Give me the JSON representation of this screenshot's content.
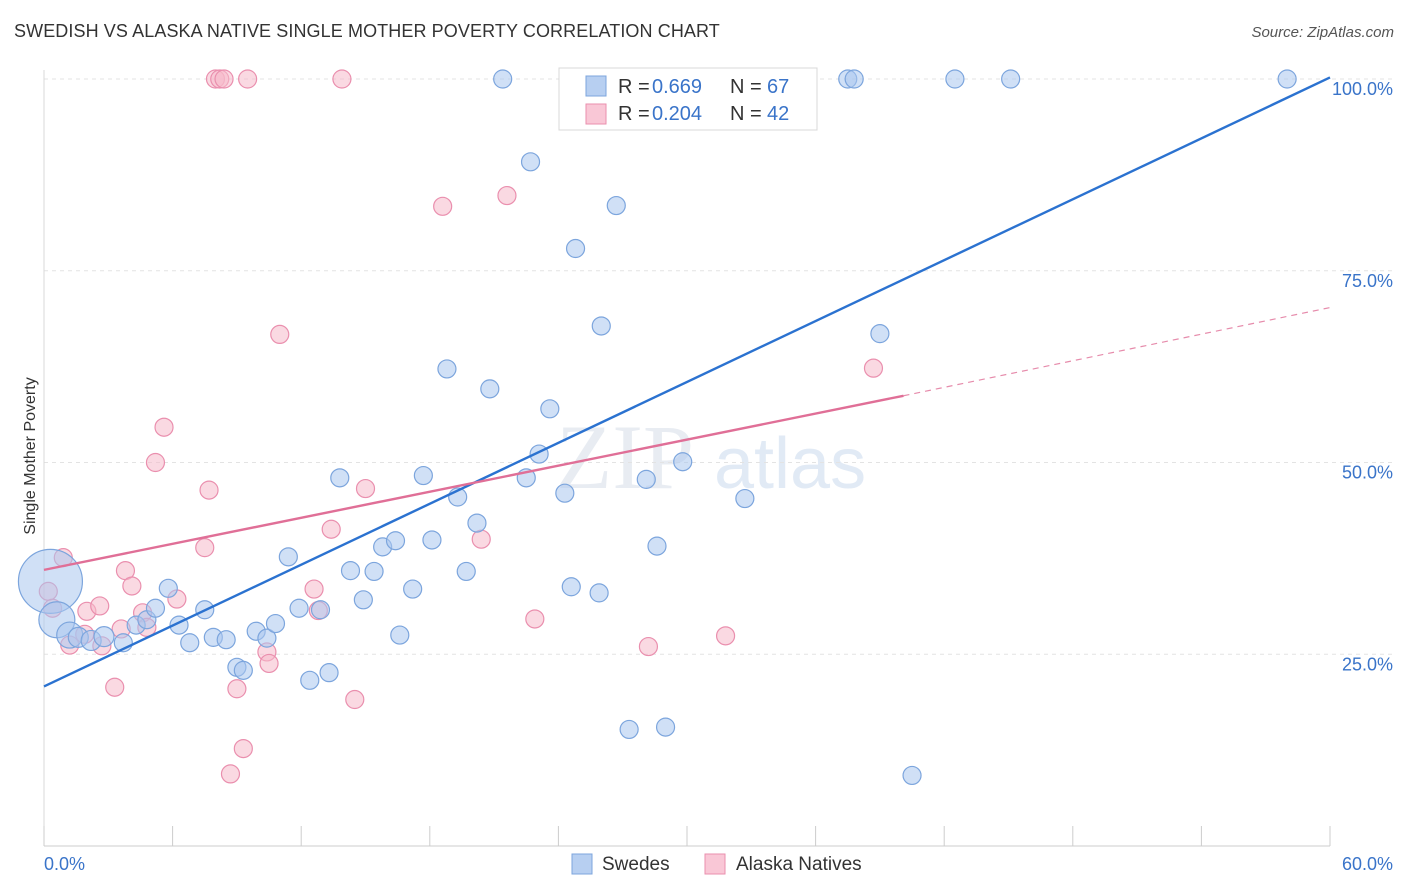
{
  "header": {
    "title": "SWEDISH VS ALASKA NATIVE SINGLE MOTHER POVERTY CORRELATION CHART",
    "source": "Source: ZipAtlas.com"
  },
  "watermark": {
    "zip": "ZIP",
    "atlas": "atlas"
  },
  "colors": {
    "blue_fill": "#a9c6ee",
    "blue_stroke": "#7ca5dd",
    "blue_line": "#2b72d0",
    "pink_fill": "#f5b9cb",
    "pink_stroke": "#ea8fae",
    "pink_line": "#e06f97",
    "axis_text": "#3a74c9",
    "grid": "#e3e3e3"
  },
  "legend": {
    "rows": [
      {
        "r_label": "R =",
        "r_value": "0.669",
        "n_label": "N =",
        "n_value": "67"
      },
      {
        "r_label": "R =",
        "r_value": "0.204",
        "n_label": "N =",
        "n_value": "42"
      }
    ]
  },
  "chart_data": {
    "type": "scatter",
    "title": "SWEDISH VS ALASKA NATIVE SINGLE MOTHER POVERTY CORRELATION CHART",
    "xlabel": "",
    "ylabel": "Single Mother Poverty",
    "xlim": [
      0,
      60
    ],
    "ylim": [
      0,
      100
    ],
    "x_tick_labels": [
      "0.0%",
      "60.0%"
    ],
    "y_tick_labels": [
      "25.0%",
      "50.0%",
      "75.0%",
      "100.0%"
    ],
    "y_ticks": [
      25,
      50,
      75,
      100
    ],
    "grid": true,
    "legend_position": "top-center",
    "series": [
      {
        "name": "Swedes",
        "r": 0.669,
        "n": 67,
        "trend": {
          "x": [
            0,
            60
          ],
          "y": [
            20.8,
            100.2
          ]
        },
        "points": [
          [
            0.3,
            34.5,
            32
          ],
          [
            0.6,
            29.5,
            18
          ],
          [
            1.2,
            27.5,
            13
          ],
          [
            1.6,
            27.2,
            10
          ],
          [
            2.2,
            26.8,
            10
          ],
          [
            2.8,
            27.3,
            10
          ],
          [
            3.7,
            26.5,
            9
          ],
          [
            4.3,
            28.8,
            9
          ],
          [
            4.8,
            29.5,
            9
          ],
          [
            5.2,
            31.0,
            9
          ],
          [
            5.8,
            33.6,
            9
          ],
          [
            6.3,
            28.8,
            9
          ],
          [
            6.8,
            26.5,
            9
          ],
          [
            7.5,
            30.8,
            9
          ],
          [
            7.9,
            27.2,
            9
          ],
          [
            8.5,
            26.9,
            9
          ],
          [
            9.0,
            23.3,
            9
          ],
          [
            9.3,
            22.9,
            9
          ],
          [
            9.9,
            28.0,
            9
          ],
          [
            10.4,
            27.1,
            9
          ],
          [
            10.8,
            29.0,
            9
          ],
          [
            11.4,
            37.7,
            9
          ],
          [
            11.9,
            31.0,
            9
          ],
          [
            12.4,
            21.6,
            9
          ],
          [
            12.9,
            30.8,
            9
          ],
          [
            13.3,
            22.6,
            9
          ],
          [
            13.8,
            48.0,
            9
          ],
          [
            14.3,
            35.9,
            9
          ],
          [
            14.9,
            32.1,
            9
          ],
          [
            15.4,
            35.8,
            9
          ],
          [
            15.8,
            39.0,
            9
          ],
          [
            16.4,
            39.8,
            9
          ],
          [
            16.6,
            27.5,
            9
          ],
          [
            17.2,
            33.5,
            9
          ],
          [
            17.7,
            48.3,
            9
          ],
          [
            18.1,
            39.9,
            9
          ],
          [
            18.8,
            62.2,
            9
          ],
          [
            19.3,
            45.5,
            9
          ],
          [
            19.7,
            35.8,
            9
          ],
          [
            20.2,
            42.1,
            9
          ],
          [
            20.8,
            59.6,
            9
          ],
          [
            21.4,
            100.0,
            9
          ],
          [
            22.5,
            48.0,
            9
          ],
          [
            22.7,
            89.2,
            9
          ],
          [
            23.1,
            51.1,
            9
          ],
          [
            23.6,
            57.0,
            9
          ],
          [
            24.3,
            46.0,
            9
          ],
          [
            24.6,
            33.8,
            9
          ],
          [
            24.8,
            77.9,
            9
          ],
          [
            25.9,
            33.0,
            9
          ],
          [
            26.0,
            67.8,
            9
          ],
          [
            26.7,
            83.5,
            9
          ],
          [
            27.3,
            15.2,
            9
          ],
          [
            28.1,
            47.8,
            9
          ],
          [
            28.6,
            39.1,
            9
          ],
          [
            29.0,
            15.5,
            9
          ],
          [
            29.8,
            50.1,
            9
          ],
          [
            31.3,
            100.0,
            9
          ],
          [
            32.7,
            45.3,
            9
          ],
          [
            37.5,
            100.0,
            9
          ],
          [
            37.8,
            100.0,
            9
          ],
          [
            39.0,
            66.8,
            9
          ],
          [
            40.5,
            9.2,
            9
          ],
          [
            42.5,
            100.0,
            9
          ],
          [
            45.1,
            100.0,
            9
          ],
          [
            58.0,
            100.0,
            9
          ],
          [
            30.9,
            100.0,
            9
          ]
        ]
      },
      {
        "name": "Alaska Natives",
        "r": 0.204,
        "n": 42,
        "trend": {
          "x": [
            0,
            40.1
          ],
          "y": [
            36.0,
            58.7
          ]
        },
        "trend_dashed": {
          "x": [
            40.1,
            60
          ],
          "y": [
            58.7,
            70.2
          ]
        },
        "points": [
          [
            0.2,
            33.2,
            9
          ],
          [
            0.4,
            31.0,
            9
          ],
          [
            0.9,
            37.6,
            9
          ],
          [
            1.2,
            26.2,
            9
          ],
          [
            1.9,
            27.6,
            9
          ],
          [
            2.0,
            30.6,
            9
          ],
          [
            2.6,
            31.3,
            9
          ],
          [
            2.7,
            26.1,
            9
          ],
          [
            3.3,
            20.7,
            9
          ],
          [
            3.6,
            28.3,
            9
          ],
          [
            3.8,
            35.9,
            9
          ],
          [
            4.1,
            33.9,
            9
          ],
          [
            4.6,
            30.4,
            9
          ],
          [
            4.8,
            28.5,
            9
          ],
          [
            5.2,
            50.0,
            9
          ],
          [
            5.6,
            54.6,
            9
          ],
          [
            6.2,
            32.2,
            9
          ],
          [
            7.5,
            38.9,
            9
          ],
          [
            7.7,
            46.4,
            9
          ],
          [
            8.0,
            100.0,
            9
          ],
          [
            8.2,
            100.0,
            9
          ],
          [
            8.7,
            9.4,
            9
          ],
          [
            9.0,
            20.5,
            9
          ],
          [
            9.3,
            12.7,
            9
          ],
          [
            9.5,
            100.0,
            9
          ],
          [
            10.4,
            25.3,
            9
          ],
          [
            10.5,
            23.8,
            9
          ],
          [
            11.0,
            66.7,
            9
          ],
          [
            12.6,
            33.5,
            9
          ],
          [
            12.8,
            30.7,
            9
          ],
          [
            13.4,
            41.3,
            9
          ],
          [
            13.9,
            100.0,
            9
          ],
          [
            14.5,
            19.1,
            9
          ],
          [
            15.0,
            46.6,
            9
          ],
          [
            18.6,
            83.4,
            9
          ],
          [
            20.4,
            40.0,
            9
          ],
          [
            21.6,
            84.8,
            9
          ],
          [
            22.9,
            29.6,
            9
          ],
          [
            28.2,
            26.0,
            9
          ],
          [
            31.8,
            27.4,
            9
          ],
          [
            38.7,
            62.3,
            9
          ],
          [
            8.4,
            100.0,
            9
          ]
        ]
      }
    ]
  },
  "bottom_legend": {
    "swedes": "Swedes",
    "alaska": "Alaska Natives"
  }
}
